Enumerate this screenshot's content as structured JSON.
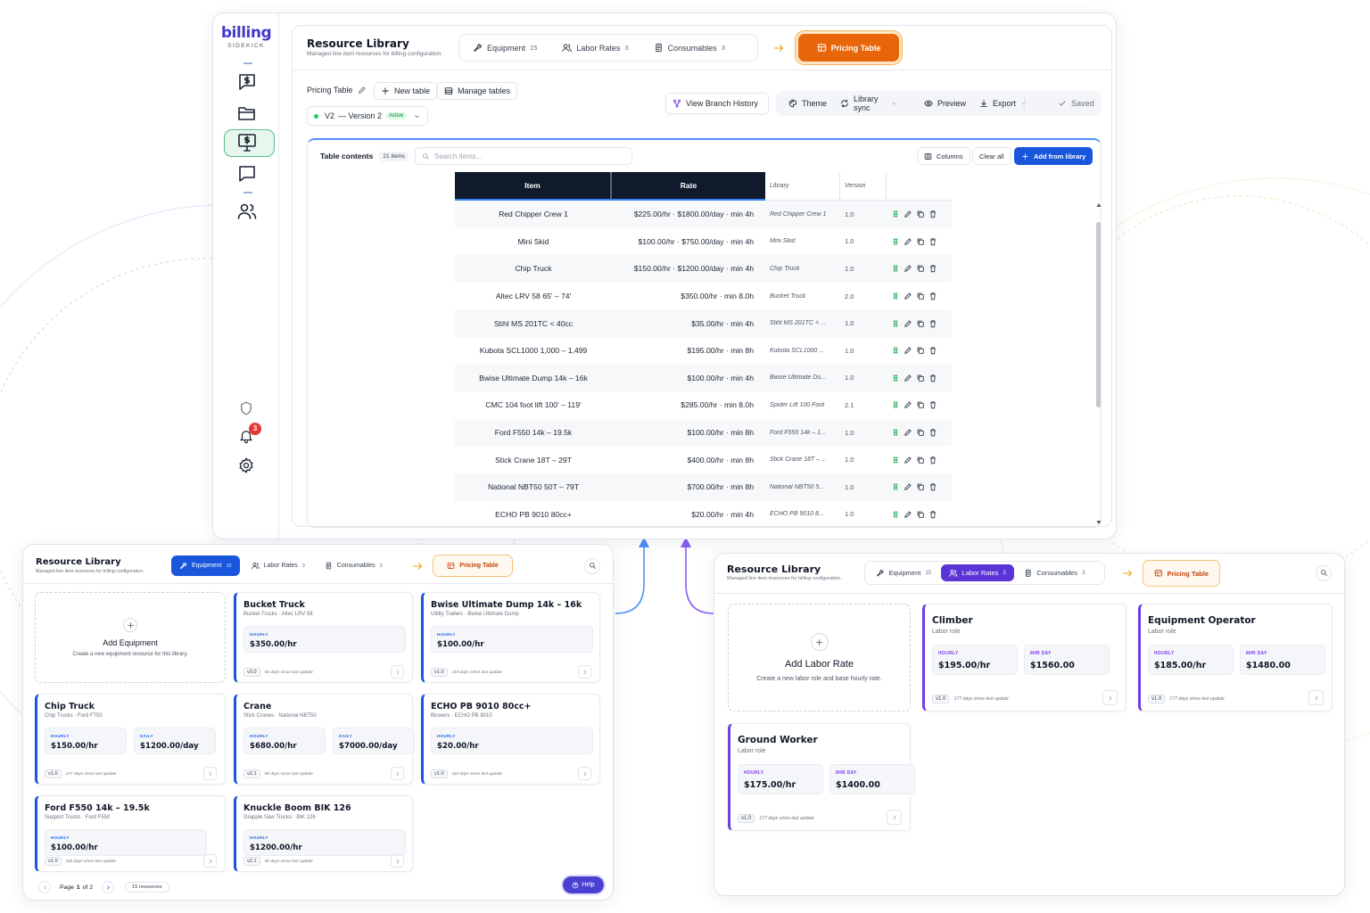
{
  "sidebar": {
    "brand": "billing",
    "brand_sub": "SIDEKICK",
    "notifications": "3"
  },
  "main": {
    "header": {
      "title": "Resource Library",
      "subtitle": "Managed line item resources for billing configuration.",
      "tabs": [
        {
          "label": "Equipment",
          "count": "15"
        },
        {
          "label": "Labor Rates",
          "count": "3"
        },
        {
          "label": "Consumables",
          "count": "3"
        }
      ],
      "pricing": "Pricing Table"
    },
    "toolbar": {
      "table_label": "Pricing Table",
      "new_table": "New table",
      "manage_tables": "Manage tables",
      "version": "V2",
      "version_name": "— Version 2",
      "status": "Active",
      "actions": [
        "View Branch History",
        "Theme",
        "Library sync",
        "Preview",
        "Export",
        "Saved"
      ]
    },
    "table": {
      "title": "Table contents",
      "count": "21 items",
      "search": "Search items...",
      "buttons": [
        "Columns",
        "Clear all",
        "Add from library"
      ],
      "columns": [
        "Item",
        "Rate",
        "Library",
        "Version"
      ],
      "rows": [
        [
          "Red Chipper Crew 1",
          "$225.00/hr · $1800.00/day · min 4h",
          "Red Chipper Crew 1",
          "1.0"
        ],
        [
          "Mini Skid",
          "$100.00/hr · $750.00/day · min 4h",
          "Mini Skid",
          "1.0"
        ],
        [
          "Chip Truck",
          "$150.00/hr · $1200.00/day · min 4h",
          "Chip Truck",
          "1.0"
        ],
        [
          "Altec LRV 58 65' – 74'",
          "$350.00/hr · min 8.0h",
          "Bucket Truck",
          "2.0"
        ],
        [
          "Stihl MS 201TC < 40cc",
          "$35.00/hr · min 4h",
          "Stihl MS 201TC < ...",
          "1.0"
        ],
        [
          "Kubota SCL1000 1,000 – 1,499",
          "$195.00/hr · min 8h",
          "Kubota SCL1000 ...",
          "1.0"
        ],
        [
          "Bwise Ultimate Dump 14k – 16k",
          "$100.00/hr · min 4h",
          "Bwise Ultimate Du...",
          "1.0"
        ],
        [
          "CMC 104 foot lift 100' – 119'",
          "$285.00/hr · min 8.0h",
          "Spider Lift 100 Foot",
          "2.1"
        ],
        [
          "Ford F550 14k – 19.5k",
          "$100.00/hr · min 8h",
          "Ford F550 14k – 1...",
          "1.0"
        ],
        [
          "Stick Crane 18T – 29T",
          "$400.00/hr · min 8h",
          "Stick Crane 18T – ...",
          "1.0"
        ],
        [
          "National NBT50 50T – 79T",
          "$700.00/hr · min 8h",
          "National NBT50 5...",
          "1.0"
        ],
        [
          "ECHO PB 9010 80cc+",
          "$20.00/hr · min 4h",
          "ECHO PB 9010 8...",
          "1.0"
        ]
      ]
    }
  },
  "equipment_view": {
    "header": {
      "title": "Resource Library",
      "subtitle": "Managed line item resources for billing configuration.",
      "tabs": [
        {
          "label": "Equipment",
          "count": "15"
        },
        {
          "label": "Labor Rates",
          "count": "3"
        },
        {
          "label": "Consumables",
          "count": "3"
        }
      ],
      "pricing": "Pricing Table"
    },
    "add": {
      "title": "Add Equipment",
      "text": "Create a new equipment resource for this library."
    },
    "cards": [
      {
        "name": "Bucket Truck",
        "sub": "Bucket Trucks · Altec LRV 58",
        "prices": [
          {
            "label": "HOURLY",
            "value": "$350.00/hr"
          }
        ],
        "version": "v3.0",
        "updated": "50 days since last update"
      },
      {
        "name": "Bwise Ultimate Dump 14k – 16k",
        "sub": "Utility Trailers · Bwise Ultimate Dump",
        "prices": [
          {
            "label": "HOURLY",
            "value": "$100.00/hr"
          }
        ],
        "version": "v1.0",
        "updated": "110 days since last update"
      },
      {
        "name": "Chip Truck",
        "sub": "Chip Trucks · Ford F750",
        "prices": [
          {
            "label": "HOURLY",
            "value": "$150.00/hr"
          },
          {
            "label": "DAILY",
            "value": "$1200.00/day"
          }
        ],
        "version": "v1.0",
        "updated": "177 days since last update"
      },
      {
        "name": "Crane",
        "sub": "Stick Cranes · National NBT50",
        "prices": [
          {
            "label": "HOURLY",
            "value": "$680.00/hr"
          },
          {
            "label": "DAILY",
            "value": "$7000.00/day"
          }
        ],
        "version": "v2.1",
        "updated": "50 days since last update"
      },
      {
        "name": "ECHO PB 9010 80cc+",
        "sub": "Blowers · ECHO PB 9010",
        "prices": [
          {
            "label": "HOURLY",
            "value": "$20.00/hr"
          }
        ],
        "version": "v1.0",
        "updated": "110 days since last update"
      },
      {
        "name": "Ford F550 14k – 19.5k",
        "sub": "Support Trucks · Ford F550",
        "prices": [
          {
            "label": "HOURLY",
            "value": "$100.00/hr"
          }
        ],
        "version": "v1.0",
        "updated": "118 days since last update"
      },
      {
        "name": "Knuckle Boom BIK 126",
        "sub": "Grapple Saw Trucks · BIK 126",
        "prices": [
          {
            "label": "HOURLY",
            "value": "$1200.00/hr"
          }
        ],
        "version": "v2.1",
        "updated": "50 days since last update"
      }
    ],
    "footer": {
      "page_prefix": "Page",
      "page_current": "1",
      "page_suffix": "of 2",
      "resources": "15 resources",
      "help": "Help"
    }
  },
  "labor_view": {
    "header": {
      "title": "Resource Library",
      "subtitle": "Managed line item resources for billing configuration.",
      "tabs": [
        {
          "label": "Equipment",
          "count": "15"
        },
        {
          "label": "Labor Rates",
          "count": "3"
        },
        {
          "label": "Consumables",
          "count": "3"
        }
      ],
      "pricing": "Pricing Table"
    },
    "add": {
      "title": "Add Labor Rate",
      "text": "Create a new labor role and base hourly rate."
    },
    "cards": [
      {
        "name": "Climber",
        "sub": "Labor role",
        "prices": [
          {
            "label": "HOURLY",
            "value": "$195.00/hr"
          },
          {
            "label": "8HR DAY",
            "value": "$1560.00"
          }
        ],
        "version": "v1.0",
        "updated": "177 days since last update"
      },
      {
        "name": "Equipment Operator",
        "sub": "Labor role",
        "prices": [
          {
            "label": "HOURLY",
            "value": "$185.00/hr"
          },
          {
            "label": "8HR DAY",
            "value": "$1480.00"
          }
        ],
        "version": "v1.0",
        "updated": "177 days since last update"
      },
      {
        "name": "Ground Worker",
        "sub": "Labor role",
        "prices": [
          {
            "label": "HOURLY",
            "value": "$175.00/hr"
          },
          {
            "label": "8HR DAY",
            "value": "$1400.00"
          }
        ],
        "version": "v1.0",
        "updated": "177 days since last update"
      }
    ]
  }
}
